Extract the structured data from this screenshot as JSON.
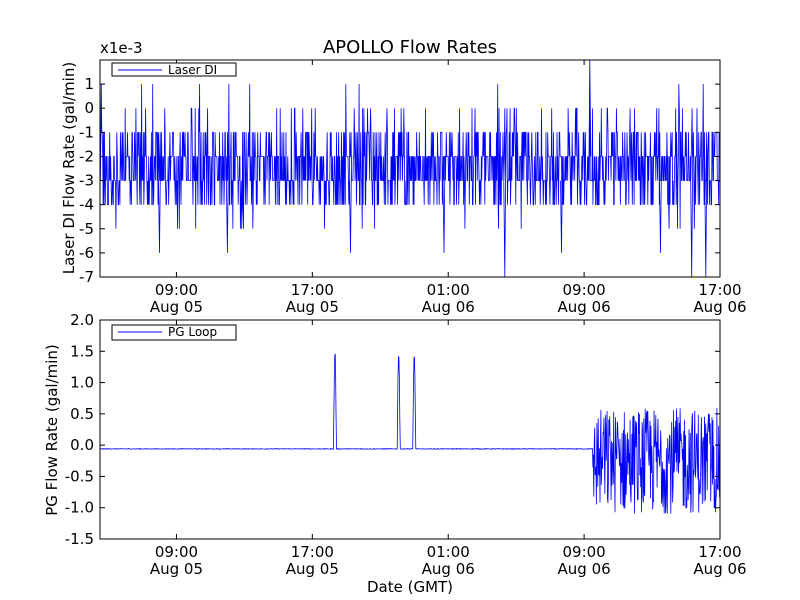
{
  "figure_title": "APOLLO Flow Rates",
  "figure_xlabel": "Date (GMT)",
  "colors": {
    "line": "#0000ff",
    "axes": "#000000",
    "background": "#ffffff"
  },
  "chart_data": [
    {
      "type": "line",
      "name": "top-panel",
      "ylabel": "Laser DI Flow Rate (gal/min)",
      "y_multiplier_label": "x1e-3",
      "ylim": [
        -7,
        2
      ],
      "yticks": [
        -7,
        -6,
        -5,
        -4,
        -3,
        -2,
        -1,
        0,
        1
      ],
      "ytick_labels": [
        "-7",
        "-6",
        "-5",
        "-4",
        "-3",
        "-2",
        "-1",
        "0",
        "1"
      ],
      "xlim": [
        "2013-08-05T04:30",
        "2013-08-06T17:00"
      ],
      "xticks": [
        {
          "time": "2013-08-05T09:00",
          "line1": "09:00",
          "line2": "Aug 05"
        },
        {
          "time": "2013-08-05T17:00",
          "line1": "17:00",
          "line2": "Aug 05"
        },
        {
          "time": "2013-08-06T01:00",
          "line1": "01:00",
          "line2": "Aug 06"
        },
        {
          "time": "2013-08-06T09:00",
          "line1": "09:00",
          "line2": "Aug 06"
        },
        {
          "time": "2013-08-06T17:00",
          "line1": "17:00",
          "line2": "Aug 06"
        }
      ],
      "legend_position": "upper-left",
      "series": [
        {
          "name": "Laser DI",
          "baseline_band": [
            -3,
            -2
          ],
          "typical_range": [
            -4,
            -1
          ],
          "occasional_levels": [
            1,
            0,
            -5
          ],
          "spikes": [
            {
              "time": "2013-08-05T08:00",
              "value": -6
            },
            {
              "time": "2013-08-05T12:00",
              "value": -6
            },
            {
              "time": "2013-08-05T19:15",
              "value": -6
            },
            {
              "time": "2013-08-06T00:45",
              "value": -6
            },
            {
              "time": "2013-08-06T04:20",
              "value": -7
            },
            {
              "time": "2013-08-06T07:40",
              "value": -6
            },
            {
              "time": "2013-08-06T09:20",
              "value": 2
            },
            {
              "time": "2013-08-06T13:30",
              "value": -6
            },
            {
              "time": "2013-08-06T15:20",
              "value": -7
            },
            {
              "time": "2013-08-06T16:10",
              "value": -7
            }
          ]
        }
      ]
    },
    {
      "type": "line",
      "name": "bottom-panel",
      "ylabel": "PG Flow Rate (gal/min)",
      "ylim": [
        -1.5,
        2.0
      ],
      "yticks": [
        -1.5,
        -1.0,
        -0.5,
        0.0,
        0.5,
        1.0,
        1.5,
        2.0
      ],
      "ytick_labels": [
        "-1.5",
        "-1.0",
        "-0.5",
        "0.0",
        "0.5",
        "1.0",
        "1.5",
        "2.0"
      ],
      "xlim": [
        "2013-08-05T04:30",
        "2013-08-06T17:00"
      ],
      "xticks": [
        {
          "time": "2013-08-05T09:00",
          "line1": "09:00",
          "line2": "Aug 05"
        },
        {
          "time": "2013-08-05T17:00",
          "line1": "17:00",
          "line2": "Aug 05"
        },
        {
          "time": "2013-08-06T01:00",
          "line1": "01:00",
          "line2": "Aug 06"
        },
        {
          "time": "2013-08-06T09:00",
          "line1": "09:00",
          "line2": "Aug 06"
        },
        {
          "time": "2013-08-06T17:00",
          "line1": "17:00",
          "line2": "Aug 06"
        }
      ],
      "legend_position": "upper-left",
      "series": [
        {
          "name": "PG Loop",
          "baseline": -0.06,
          "pulses": [
            {
              "start": "2013-08-05T18:15",
              "end": "2013-08-05T18:25",
              "peak": 1.52
            },
            {
              "start": "2013-08-05T22:00",
              "end": "2013-08-05T22:10",
              "peak": 1.48
            },
            {
              "start": "2013-08-05T22:55",
              "end": "2013-08-05T23:05",
              "peak": 1.47
            }
          ],
          "noisy_segment": {
            "start": "2013-08-06T09:30",
            "end": "2013-08-06T17:00",
            "range": [
              -1.1,
              0.6
            ]
          }
        }
      ]
    }
  ]
}
